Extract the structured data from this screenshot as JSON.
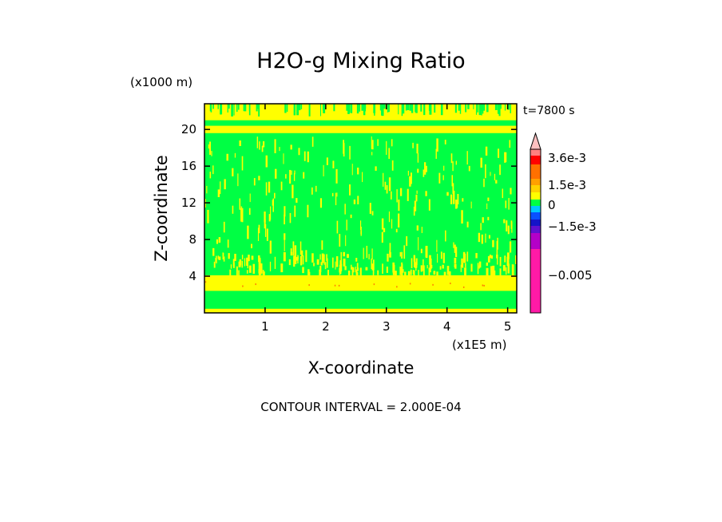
{
  "chart_data": {
    "type": "heatmap",
    "title": "H2O-g Mixing Ratio",
    "time_label": "t=7800 s",
    "xlabel": "X-coordinate",
    "ylabel": "Z-coordinate",
    "x_unit": "(x1E5 m)",
    "y_unit": "(x1000 m)",
    "xlim": [
      0,
      5.15
    ],
    "ylim": [
      0,
      22.8
    ],
    "x_ticks": [
      1,
      2,
      3,
      4,
      5
    ],
    "y_ticks": [
      4,
      8,
      12,
      16,
      20
    ],
    "x_tick_labels": [
      "1",
      "2",
      "3",
      "4",
      "5"
    ],
    "y_tick_labels": [
      "4",
      "8",
      "12",
      "16",
      "20"
    ],
    "contour_interval_text": "CONTOUR INTERVAL = 2.000E-04",
    "field_colors": {
      "background": "#00ff44",
      "band": "#ffff00",
      "accent": "#ff7f00"
    },
    "yellow_bands": [
      {
        "z_min": 21.0,
        "z_max": 22.8
      },
      {
        "z_min": 19.6,
        "z_max": 20.4
      },
      {
        "z_min": 2.4,
        "z_max": 4.1
      },
      {
        "z_min": 0.0,
        "z_max": 0.45
      }
    ],
    "colorbar": {
      "colors": [
        "#ff1aa6",
        "#b400c8",
        "#6010d0",
        "#1414c8",
        "#0a50ff",
        "#00c8ff",
        "#00ff44",
        "#ffff00",
        "#ffd200",
        "#ffa000",
        "#ff7000",
        "#ff0000",
        "#ff8080",
        "#ffc0c0"
      ],
      "labels": [
        "3.6e-3",
        "1.5e-3",
        "0",
        "−1.5e-3",
        "−0.005"
      ]
    }
  }
}
